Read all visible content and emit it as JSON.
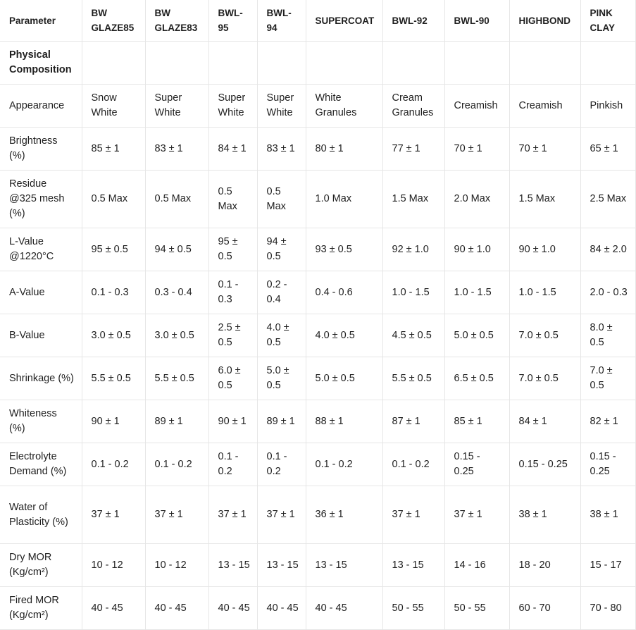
{
  "table": {
    "columns": [
      "Parameter",
      "BW GLAZE85",
      "BW GLAZE83",
      "BWL-95",
      "BWL-94",
      "SUPERCOAT",
      "BWL-92",
      "BWL-90",
      "HIGHBOND",
      "PINK CLAY"
    ],
    "section_title": "Physical Composition",
    "rows": [
      [
        "Appearance",
        "Snow White",
        "Super White",
        "Super White",
        "Super White",
        "White Granules",
        "Cream Granules",
        "Creamish",
        "Creamish",
        "Pinkish"
      ],
      [
        "Brightness (%)",
        "85 ± 1",
        "83 ± 1",
        "84 ± 1",
        "83 ± 1",
        "80 ± 1",
        "77 ± 1",
        "70 ± 1",
        "70 ± 1",
        "65 ± 1"
      ],
      [
        "Residue @325 mesh (%)",
        "0.5 Max",
        "0.5 Max",
        "0.5 Max",
        "0.5 Max",
        "1.0 Max",
        "1.5 Max",
        "2.0 Max",
        "1.5 Max",
        "2.5 Max"
      ],
      [
        "L-Value @1220°C",
        "95 ± 0.5",
        "94 ± 0.5",
        "95 ± 0.5",
        "94 ± 0.5",
        "93 ± 0.5",
        "92 ± 1.0",
        "90 ± 1.0",
        "90 ± 1.0",
        "84 ± 2.0"
      ],
      [
        "A-Value",
        "0.1 - 0.3",
        "0.3 - 0.4",
        "0.1 - 0.3",
        "0.2 - 0.4",
        "0.4 - 0.6",
        "1.0 - 1.5",
        "1.0 - 1.5",
        "1.0 - 1.5",
        "2.0 - 0.3"
      ],
      [
        "B-Value",
        "3.0 ± 0.5",
        "3.0 ± 0.5",
        "2.5 ± 0.5",
        "4.0 ± 0.5",
        "4.0 ± 0.5",
        "4.5 ± 0.5",
        "5.0 ± 0.5",
        "7.0 ± 0.5",
        "8.0 ± 0.5"
      ],
      [
        "Shrinkage (%)",
        "5.5 ± 0.5",
        "5.5 ± 0.5",
        "6.0 ± 0.5",
        "5.0 ± 0.5",
        "5.0 ± 0.5",
        "5.5 ± 0.5",
        "6.5 ± 0.5",
        "7.0 ± 0.5",
        "7.0 ± 0.5"
      ],
      [
        "Whiteness (%)",
        "90 ± 1",
        "89 ± 1",
        "90 ± 1",
        "89 ± 1",
        "88 ± 1",
        "87 ± 1",
        "85 ± 1",
        "84 ± 1",
        "82 ± 1"
      ],
      [
        "Electrolyte Demand (%)",
        "0.1 - 0.2",
        "0.1 - 0.2",
        "0.1 - 0.2",
        "0.1 - 0.2",
        "0.1 - 0.2",
        "0.1 - 0.2",
        "0.15 - 0.25",
        "0.15 - 0.25",
        "0.15 - 0.25"
      ],
      [
        "Water of Plasticity (%)",
        "37 ± 1",
        "37 ± 1",
        "37 ± 1",
        "37 ± 1",
        "36 ± 1",
        "37 ± 1",
        "37 ± 1",
        "38 ± 1",
        "38 ± 1"
      ],
      [
        "Dry MOR (Kg/cm²)",
        "10 - 12",
        "10 - 12",
        "13 - 15",
        "13 - 15",
        "13 - 15",
        "13 - 15",
        "14 - 16",
        "18 - 20",
        "15 - 17"
      ],
      [
        "Fired MOR (Kg/cm²)",
        "40 - 45",
        "40 - 45",
        "40 - 45",
        "40 - 45",
        "40 - 45",
        "50 - 55",
        "50 - 55",
        "60 - 70",
        "70 - 80"
      ]
    ]
  }
}
